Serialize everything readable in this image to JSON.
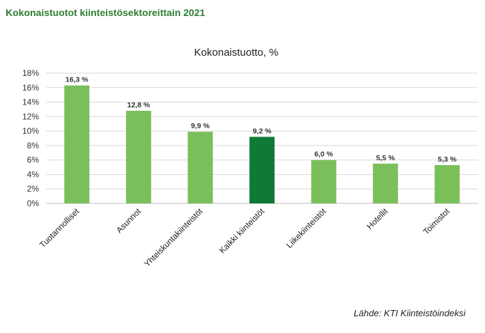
{
  "page": {
    "title": "Kokonaistuotot kiinteistösektoreittain 2021",
    "source": "Lähde: KTI Kiinteistöindeksi"
  },
  "chart_data": {
    "type": "bar",
    "title": "Kokonaistuotto, %",
    "xlabel": "",
    "ylabel": "",
    "categories": [
      "Tuotannolliset",
      "Asunnot",
      "Yhteiskuntakiinteistöt",
      "Kaikki kiinteistöt",
      "Liikekiinteistöt",
      "Hotellit",
      "Toimistot"
    ],
    "values": [
      16.3,
      12.8,
      9.9,
      9.2,
      6.0,
      5.5,
      5.3
    ],
    "data_labels": [
      "16,3 %",
      "12,8 %",
      "9,9 %",
      "9,2 %",
      "6,0 %",
      "5,5 %",
      "5,3 %"
    ],
    "ylim": [
      0,
      18
    ],
    "yticks": [
      0,
      2,
      4,
      6,
      8,
      10,
      12,
      14,
      16,
      18
    ],
    "ytick_labels": [
      "0%",
      "2%",
      "4%",
      "6%",
      "8%",
      "10%",
      "12%",
      "14%",
      "16%",
      "18%"
    ],
    "grid": true,
    "legend": "none",
    "colors": {
      "bar": "#7bbf5a",
      "highlight": "#0f7a35",
      "grid": "#d9d9d9",
      "axis": "#bfbfbf",
      "label": "#333333"
    },
    "highlight_index": 3
  }
}
